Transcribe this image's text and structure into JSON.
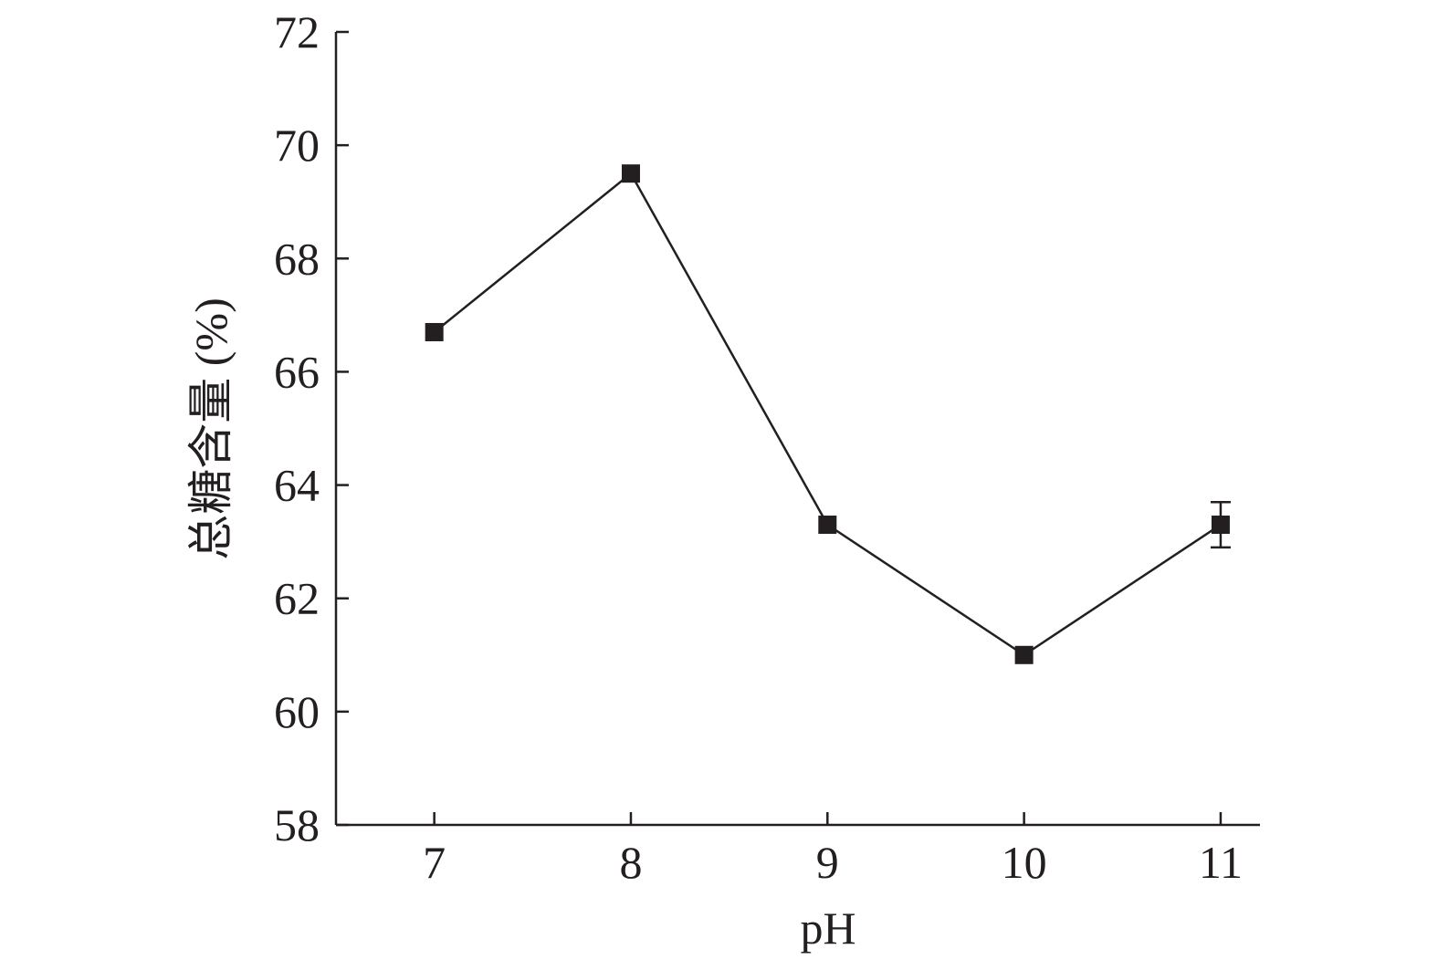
{
  "chart_data": {
    "type": "line",
    "title": "",
    "xlabel": "pH",
    "ylabel": "总糖含量 (%)",
    "x": [
      7,
      8,
      9,
      10,
      11
    ],
    "xticks": [
      "7",
      "8",
      "9",
      "10",
      "11"
    ],
    "xlim": [
      6.5,
      11.2
    ],
    "ylim": [
      58,
      72
    ],
    "yticks": [
      "58",
      "60",
      "62",
      "64",
      "66",
      "68",
      "70",
      "72"
    ],
    "grid": false,
    "legend": "none",
    "series": [
      {
        "values": [
          66.7,
          69.5,
          63.3,
          61.0,
          63.3
        ],
        "errors": [
          0.0,
          0.0,
          0.0,
          0.0,
          0.4
        ],
        "color": "#231f20",
        "marker": "square"
      }
    ]
  }
}
